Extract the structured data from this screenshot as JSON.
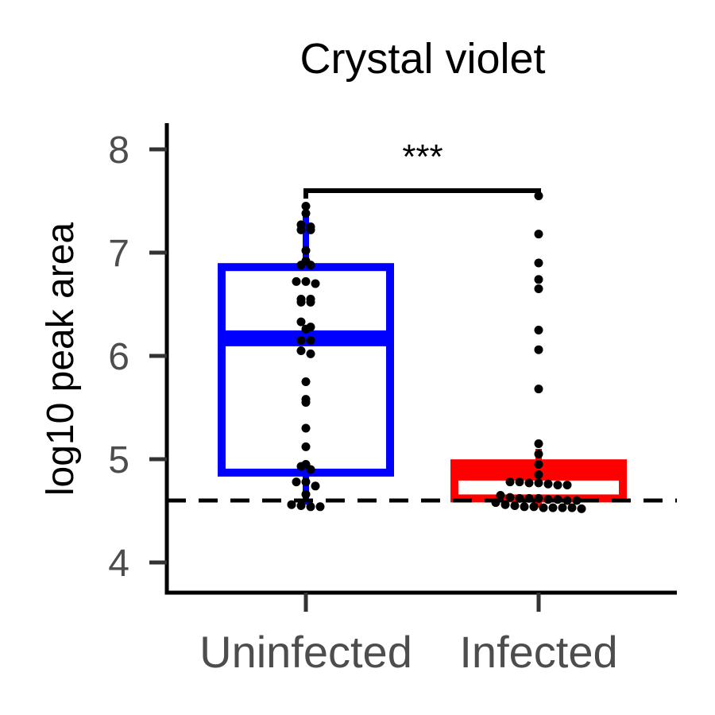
{
  "chart_data": {
    "type": "box",
    "title": "Crystal violet",
    "ylabel": "log10 peak area",
    "xlabel": "",
    "ylim": [
      3.7,
      8.25
    ],
    "yticks": [
      4,
      5,
      6,
      7,
      8
    ],
    "categories": [
      "Uninfected",
      "Infected"
    ],
    "box_colors": [
      "#0000ff",
      "#ff0000"
    ],
    "point_color": "#000000",
    "threshold_line": 4.6,
    "significance": {
      "label": "***",
      "bracket_y": 7.6,
      "groups": [
        "Uninfected",
        "Infected"
      ]
    },
    "groups": [
      {
        "name": "Uninfected",
        "q1": 4.87,
        "median": 6.17,
        "q3": 6.86,
        "whisker_low": 4.56,
        "whisker_high": 7.38,
        "points": [
          7.45,
          7.38,
          7.27,
          7.25,
          7.22,
          7.22,
          7.02,
          6.92,
          6.88,
          6.88,
          6.72,
          6.72,
          6.7,
          6.55,
          6.55,
          6.52,
          6.52,
          6.33,
          6.28,
          6.26,
          6.15,
          6.15,
          6.05,
          6.02,
          5.75,
          5.58,
          5.55,
          5.3,
          5.12,
          4.95,
          4.93,
          4.9,
          4.78,
          4.78,
          4.74,
          4.66,
          4.56,
          4.55,
          4.54,
          4.54
        ]
      },
      {
        "name": "Infected",
        "q1": 4.62,
        "median": 4.87,
        "q3": 4.96,
        "whisker_low": 4.53,
        "whisker_high": 5.1,
        "points": [
          7.55,
          7.18,
          6.9,
          6.74,
          6.65,
          6.25,
          6.06,
          5.68,
          5.15,
          5.05,
          4.95,
          4.85,
          4.78,
          4.78,
          4.77,
          4.77,
          4.76,
          4.75,
          4.75,
          4.65,
          4.63,
          4.62,
          4.62,
          4.62,
          4.61,
          4.61,
          4.6,
          4.6,
          4.58,
          4.56,
          4.55,
          4.54,
          4.54,
          4.53,
          4.53,
          4.53,
          4.53,
          4.52
        ]
      }
    ]
  }
}
